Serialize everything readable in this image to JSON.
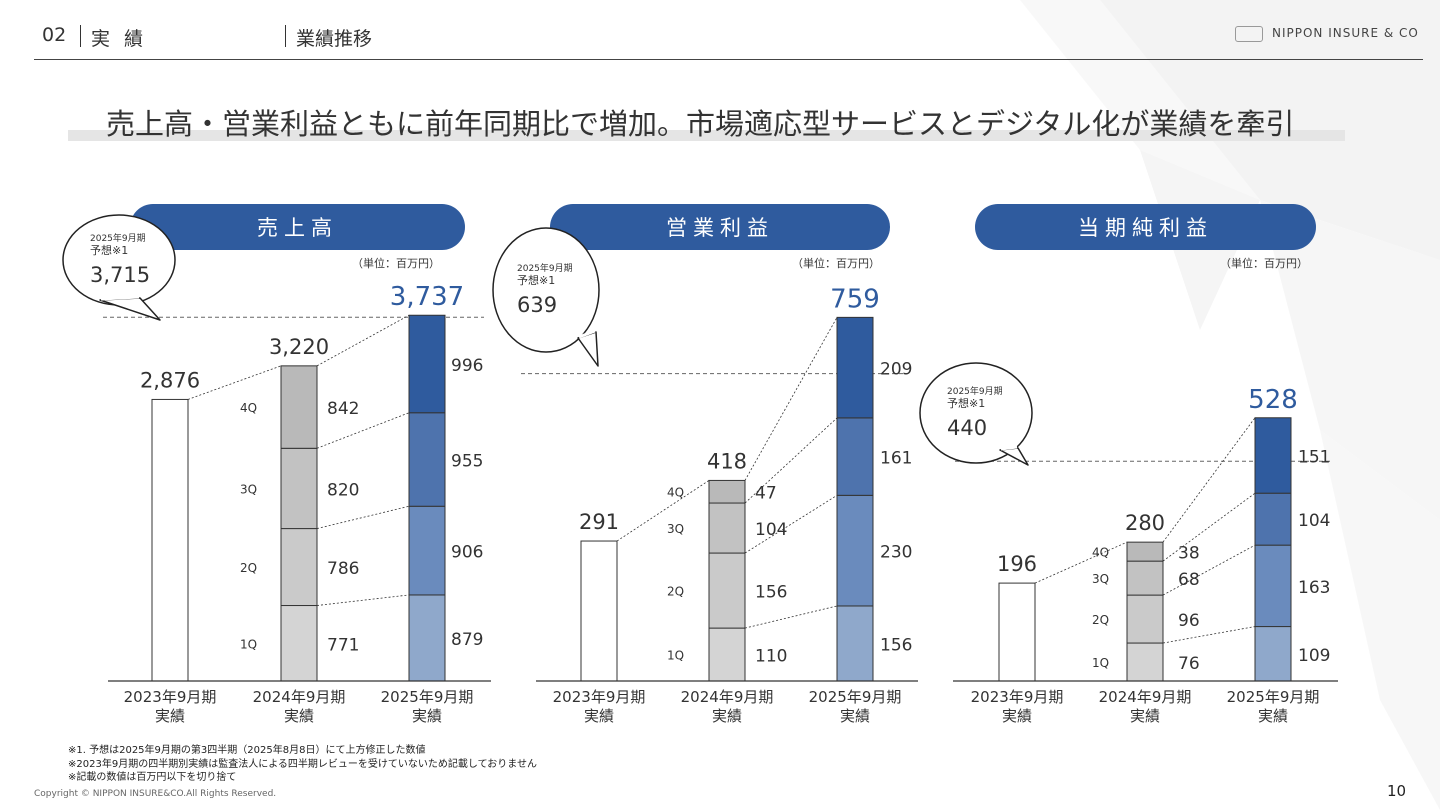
{
  "header": {
    "section_no": "02",
    "category": "実績",
    "subtitle": "業績推移",
    "logo_text": "NIPPON INSURE & CO"
  },
  "headline": "売上高・営業利益ともに前年同期比で増加。市場適応型サービスとデジタル化が業績を牽引",
  "colors": {
    "accent": "#2f5b9e",
    "q1_2025": "#8fa8cb",
    "q2_2025": "#6a8bbd",
    "q3_2025": "#4e73ad",
    "q4_2025": "#2f5b9e",
    "q1_2024": "#d4d4d4",
    "q2_2024": "#cacaca",
    "q3_2024": "#c2c2c2",
    "q4_2024": "#b9b9b9"
  },
  "chart_data": [
    {
      "type": "bar",
      "title": "売上高",
      "unit": "（単位：百万円）",
      "categories": [
        [
          "2023年9月期",
          "実績"
        ],
        [
          "2024年9月期",
          "実績"
        ],
        [
          "2025年9月期",
          "実績"
        ]
      ],
      "quarter_labels": [
        "1Q",
        "2Q",
        "3Q",
        "4Q"
      ],
      "totals": [
        2876,
        3220,
        3737
      ],
      "total_labels": [
        "2,876",
        "3,220",
        "3,737"
      ],
      "quarters_2024": [
        771,
        786,
        820,
        842
      ],
      "quarters_2025": [
        879,
        906,
        955,
        996
      ],
      "forecast": {
        "label": [
          "2025年9月期",
          "予想※1"
        ],
        "value": 3715,
        "value_label": "3,715"
      }
    },
    {
      "type": "bar",
      "title": "営業利益",
      "unit": "（単位：百万円）",
      "categories": [
        [
          "2023年9月期",
          "実績"
        ],
        [
          "2024年9月期",
          "実績"
        ],
        [
          "2025年9月期",
          "実績"
        ]
      ],
      "quarter_labels": [
        "1Q",
        "2Q",
        "3Q",
        "4Q"
      ],
      "totals": [
        291,
        418,
        759
      ],
      "total_labels": [
        "291",
        "418",
        "759"
      ],
      "quarters_2024": [
        110,
        156,
        104,
        47
      ],
      "quarters_2025": [
        156,
        230,
        161,
        209
      ],
      "forecast": {
        "label": [
          "2025年9月期",
          "予想※1"
        ],
        "value": 639,
        "value_label": "639"
      }
    },
    {
      "type": "bar",
      "title": "当期純利益",
      "unit": "（単位：百万円）",
      "categories": [
        [
          "2023年9月期",
          "実績"
        ],
        [
          "2024年9月期",
          "実績"
        ],
        [
          "2025年9月期",
          "実績"
        ]
      ],
      "quarter_labels": [
        "1Q",
        "2Q",
        "3Q",
        "4Q"
      ],
      "totals": [
        196,
        280,
        528
      ],
      "total_labels": [
        "196",
        "280",
        "528"
      ],
      "quarters_2024": [
        76,
        96,
        68,
        38
      ],
      "quarters_2025": [
        109,
        163,
        104,
        151
      ],
      "forecast": {
        "label": [
          "2025年9月期",
          "予想※1"
        ],
        "value": 440,
        "value_label": "440"
      }
    }
  ],
  "footnotes": [
    "※1. 予想は2025年9月期の第3四半期（2025年8月8日）にて上方修正した数値",
    "※2023年9月期の四半期別実績は監査法人による四半期レビューを受けていないため記載しておりません",
    "※記載の数値は百万円以下を切り捨て"
  ],
  "copyright": "Copyright © NIPPON INSURE&CO.All Rights Reserved.",
  "page_number": "10"
}
